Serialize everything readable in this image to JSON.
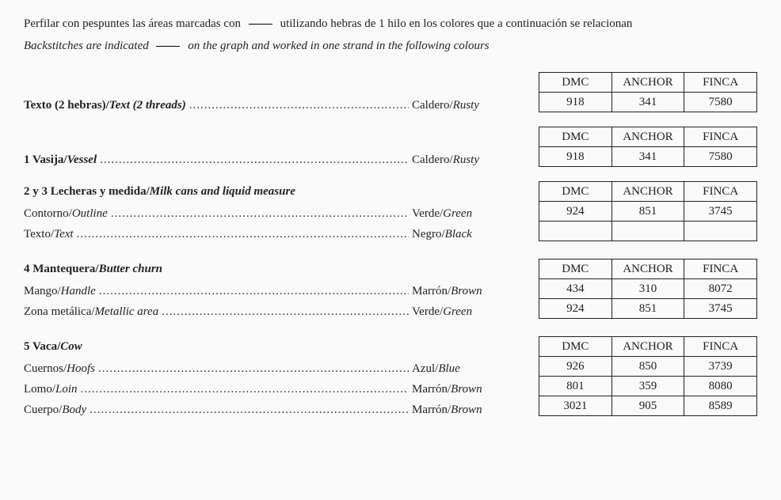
{
  "intro": {
    "es_part1": "Perfilar con pespuntes las áreas marcadas con",
    "es_part2": "utilizando hebras de 1 hilo en los colores que a continuación se relacionan",
    "en_part1": "Backstitches are indicated",
    "en_part2": "on the graph and worked in one strand in the following colours"
  },
  "headers": {
    "dmc": "DMC",
    "anchor": "ANCHOR",
    "finca": "FINCA"
  },
  "dots": "........................................................................................................................",
  "sections": [
    {
      "id": "texto",
      "heading_es": "Texto (2 hebras)/",
      "heading_en": "Text (2 threads)",
      "heading_inline": true,
      "rows": [
        {
          "label_es": "",
          "label_en": "",
          "color_es": "Caldero/",
          "color_en": "Rusty",
          "dmc": "918",
          "anchor": "341",
          "finca": "7580"
        }
      ]
    },
    {
      "id": "vasija",
      "heading_es": "1 Vasija/",
      "heading_en": "Vessel",
      "heading_inline": true,
      "rows": [
        {
          "label_es": "",
          "label_en": "",
          "color_es": "Caldero/",
          "color_en": "Rusty",
          "dmc": "918",
          "anchor": "341",
          "finca": "7580"
        }
      ]
    },
    {
      "id": "lecheras",
      "heading_es": "2 y 3 Lecheras y medida/",
      "heading_en": "Milk cans and liquid measure",
      "heading_inline": false,
      "rows": [
        {
          "label_es": "Contorno/",
          "label_en": "Outline",
          "color_es": "Verde/",
          "color_en": "Green",
          "dmc": "924",
          "anchor": "851",
          "finca": "3745"
        },
        {
          "label_es": "Texto/",
          "label_en": "Text",
          "color_es": "Negro/",
          "color_en": "Black",
          "dmc": "",
          "anchor": "",
          "finca": ""
        }
      ]
    },
    {
      "id": "mantequera",
      "heading_es": "4 Mantequera/",
      "heading_en": "Butter churn",
      "heading_inline": false,
      "rows": [
        {
          "label_es": "Mango/",
          "label_en": "Handle",
          "color_es": "Marrón/",
          "color_en": "Brown",
          "dmc": "434",
          "anchor": "310",
          "finca": "8072"
        },
        {
          "label_es": "Zona metálica/",
          "label_en": "Metallic area",
          "color_es": "Verde/",
          "color_en": "Green",
          "dmc": "924",
          "anchor": "851",
          "finca": "3745"
        }
      ]
    },
    {
      "id": "vaca",
      "heading_es": "5 Vaca/",
      "heading_en": "Cow",
      "heading_inline": false,
      "rows": [
        {
          "label_es": "Cuernos/",
          "label_en": "Hoofs",
          "color_es": "Azul/",
          "color_en": "Blue",
          "dmc": "926",
          "anchor": "850",
          "finca": "3739"
        },
        {
          "label_es": "Lomo/",
          "label_en": "Loin",
          "color_es": "Marrón/",
          "color_en": "Brown",
          "dmc": "801",
          "anchor": "359",
          "finca": "8080"
        },
        {
          "label_es": "Cuerpo/",
          "label_en": "Body",
          "color_es": "Marrón/",
          "color_en": "Brown",
          "dmc": "3021",
          "anchor": "905",
          "finca": "8589"
        }
      ]
    }
  ]
}
